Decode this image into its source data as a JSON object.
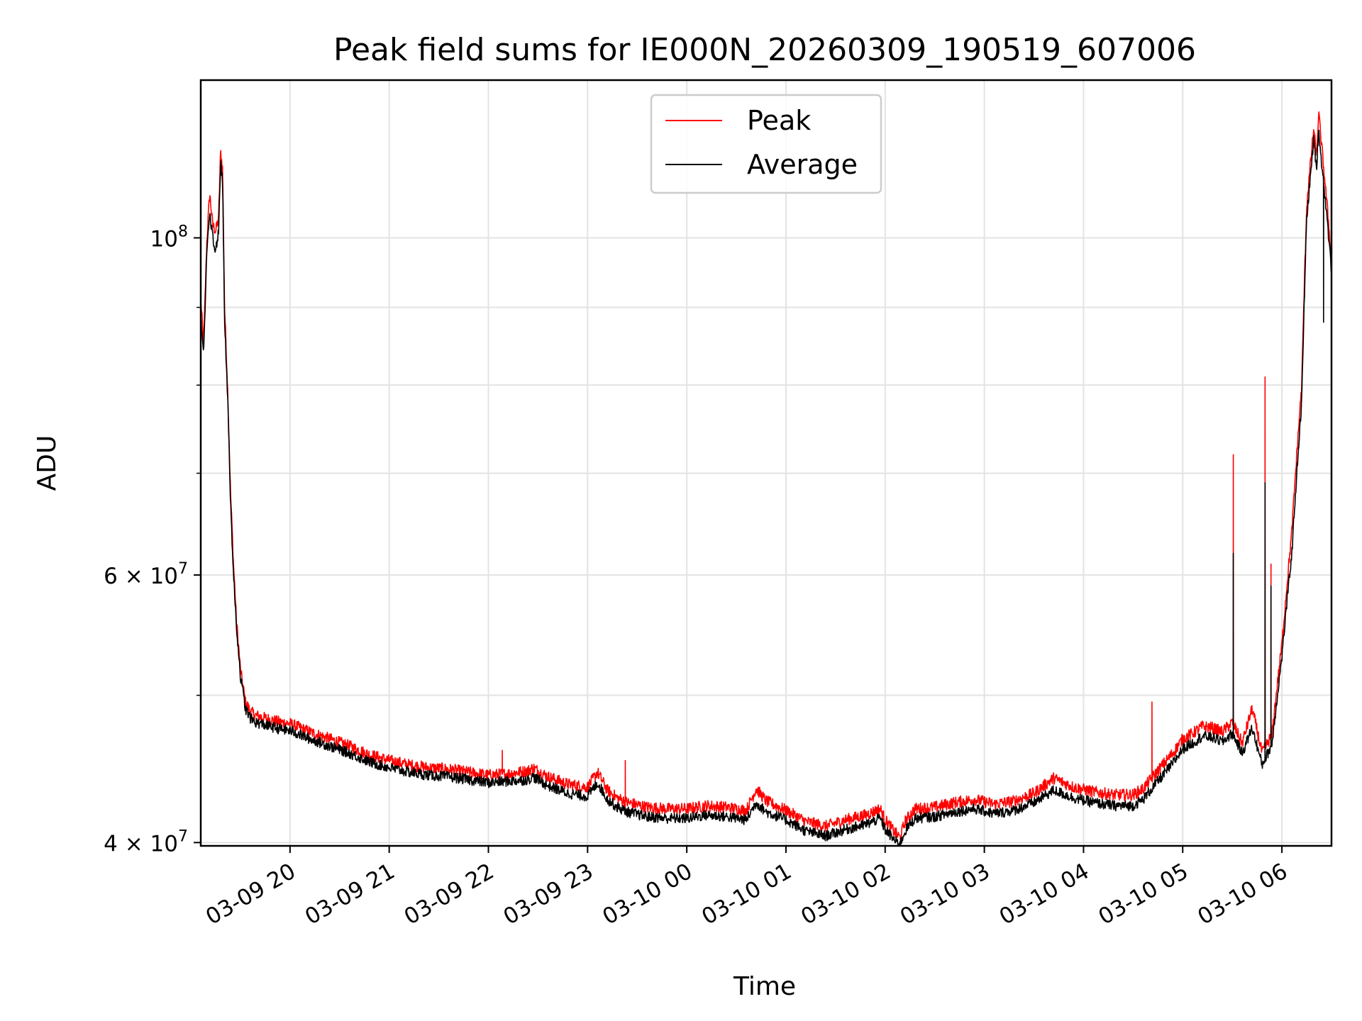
{
  "chart_data": {
    "type": "line",
    "title": "Peak field sums for IE000N_20260309_190519_607006",
    "xlabel": "Time",
    "ylabel": "ADU",
    "yscale": "log",
    "ylim": [
      39800000,
      127000000
    ],
    "xlim": [
      19.1,
      30.5
    ],
    "grid": true,
    "legend_position": "top-center",
    "x_ticks": [
      {
        "v": 20,
        "label": "03-09 20"
      },
      {
        "v": 21,
        "label": "03-09 21"
      },
      {
        "v": 22,
        "label": "03-09 22"
      },
      {
        "v": 23,
        "label": "03-09 23"
      },
      {
        "v": 24,
        "label": "03-10 00"
      },
      {
        "v": 25,
        "label": "03-10 01"
      },
      {
        "v": 26,
        "label": "03-10 02"
      },
      {
        "v": 27,
        "label": "03-10 03"
      },
      {
        "v": 28,
        "label": "03-10 04"
      },
      {
        "v": 29,
        "label": "03-10 05"
      },
      {
        "v": 30,
        "label": "03-10 06"
      }
    ],
    "y_major_ticks": [
      {
        "v": 100000000,
        "base": "10",
        "exp": "8",
        "coef": ""
      },
      {
        "v": 60000000,
        "base": "10",
        "exp": "7",
        "coef": "6 × "
      },
      {
        "v": 40000000,
        "base": "10",
        "exp": "7",
        "coef": "4 × "
      }
    ],
    "y_minor_ticks": [
      90000000,
      80000000,
      70000000,
      50000000
    ],
    "series": [
      {
        "name": "Peak",
        "color": "#ff0000",
        "x": [
          19.1,
          19.13,
          19.16,
          19.19,
          19.22,
          19.25,
          19.28,
          19.3,
          19.32,
          19.34,
          19.37,
          19.4,
          19.43,
          19.46,
          19.5,
          19.55,
          19.6,
          19.65,
          19.7,
          19.75,
          19.8,
          19.85,
          19.9,
          20.0,
          20.2,
          20.4,
          20.6,
          20.8,
          21.0,
          21.2,
          21.4,
          21.6,
          21.8,
          22.0,
          22.2,
          22.4,
          22.45,
          22.6,
          22.8,
          23.0,
          23.1,
          23.2,
          23.3,
          23.4,
          23.6,
          23.8,
          24.0,
          24.2,
          24.4,
          24.6,
          24.7,
          24.8,
          25.0,
          25.2,
          25.4,
          25.6,
          25.8,
          25.95,
          26.0,
          26.1,
          26.15,
          26.2,
          26.3,
          26.5,
          26.7,
          26.9,
          27.1,
          27.3,
          27.5,
          27.7,
          27.9,
          28.1,
          28.3,
          28.5,
          28.6,
          28.7,
          28.8,
          28.9,
          29.0,
          29.1,
          29.2,
          29.3,
          29.4,
          29.5,
          29.6,
          29.7,
          29.8,
          29.9,
          30.0,
          30.1,
          30.2,
          30.25,
          30.3,
          30.32,
          30.35,
          30.37,
          30.4,
          30.45,
          30.5
        ],
        "y": [
          91000000,
          85000000,
          99000000,
          107000000,
          102000000,
          101000000,
          103000000,
          114000000,
          111000000,
          90000000,
          80000000,
          68000000,
          61000000,
          56000000,
          52000000,
          49500000,
          48800000,
          48500000,
          48400000,
          48300000,
          48200000,
          48100000,
          48000000,
          47900000,
          47300000,
          46800000,
          46300000,
          45700000,
          45300000,
          45000000,
          44800000,
          44700000,
          44500000,
          44300000,
          44400000,
          44600000,
          44800000,
          44200000,
          43700000,
          43500000,
          44500000,
          43300000,
          42800000,
          42500000,
          42200000,
          42100000,
          42100000,
          42300000,
          42200000,
          42000000,
          43400000,
          42600000,
          42000000,
          41300000,
          41000000,
          41400000,
          41700000,
          42100000,
          41400000,
          40600000,
          40300000,
          41300000,
          42100000,
          42200000,
          42500000,
          42700000,
          42400000,
          42600000,
          43100000,
          44100000,
          43500000,
          43200000,
          43000000,
          43000000,
          43400000,
          44200000,
          45000000,
          45800000,
          46800000,
          47200000,
          47700000,
          47600000,
          47300000,
          48000000,
          46500000,
          49000000,
          45800000,
          47100000,
          54000000,
          64000000,
          80000000,
          105000000,
          114000000,
          118000000,
          113000000,
          121000000,
          115000000,
          106000000,
          97000000
        ]
      },
      {
        "name": "Average",
        "color": "#000000",
        "x": [
          19.1,
          19.13,
          19.16,
          19.19,
          19.22,
          19.25,
          19.28,
          19.3,
          19.32,
          19.34,
          19.37,
          19.4,
          19.43,
          19.46,
          19.5,
          19.55,
          19.6,
          19.65,
          19.7,
          19.75,
          19.8,
          19.85,
          19.9,
          20.0,
          20.2,
          20.4,
          20.6,
          20.8,
          21.0,
          21.2,
          21.4,
          21.6,
          21.8,
          22.0,
          22.2,
          22.4,
          22.45,
          22.6,
          22.8,
          23.0,
          23.1,
          23.2,
          23.3,
          23.4,
          23.6,
          23.8,
          24.0,
          24.2,
          24.4,
          24.6,
          24.7,
          24.8,
          25.0,
          25.2,
          25.4,
          25.6,
          25.8,
          25.95,
          26.0,
          26.1,
          26.15,
          26.2,
          26.3,
          26.5,
          26.7,
          26.9,
          27.1,
          27.3,
          27.5,
          27.7,
          27.9,
          28.1,
          28.3,
          28.5,
          28.6,
          28.7,
          28.8,
          28.9,
          29.0,
          29.1,
          29.2,
          29.3,
          29.4,
          29.5,
          29.6,
          29.7,
          29.8,
          29.9,
          30.0,
          30.1,
          30.2,
          30.25,
          30.3,
          30.32,
          30.35,
          30.37,
          30.4,
          30.45,
          30.5
        ],
        "y": [
          89000000,
          84000000,
          97000000,
          104000000,
          100000000,
          98000000,
          101000000,
          112000000,
          109000000,
          88000000,
          79000000,
          67000000,
          60000000,
          55500000,
          51500000,
          49000000,
          48300000,
          48000000,
          47900000,
          47800000,
          47700000,
          47600000,
          47500000,
          47400000,
          46800000,
          46300000,
          45800000,
          45200000,
          44800000,
          44500000,
          44300000,
          44200000,
          44000000,
          43800000,
          43900000,
          44000000,
          44200000,
          43600000,
          43100000,
          42900000,
          43800000,
          42700000,
          42200000,
          41900000,
          41600000,
          41500000,
          41500000,
          41700000,
          41600000,
          41400000,
          42500000,
          41900000,
          41400000,
          40700000,
          40400000,
          40800000,
          41100000,
          41500000,
          40800000,
          40100000,
          39900000,
          40700000,
          41500000,
          41600000,
          41900000,
          42100000,
          41800000,
          42000000,
          42500000,
          43300000,
          42800000,
          42500000,
          42300000,
          42300000,
          42700000,
          43500000,
          44300000,
          45100000,
          46100000,
          46500000,
          47000000,
          46900000,
          46600000,
          47200000,
          45800000,
          47600000,
          45000000,
          46400000,
          53000000,
          62000000,
          78000000,
          103000000,
          112000000,
          116000000,
          111000000,
          118000000,
          112000000,
          104000000,
          95000000
        ]
      }
    ],
    "spikes": [
      {
        "series": "Peak",
        "x": 28.69,
        "y": 49500000
      },
      {
        "series": "Peak",
        "x": 29.51,
        "y": 72000000
      },
      {
        "series": "Peak",
        "x": 29.83,
        "y": 81000000
      },
      {
        "series": "Peak",
        "x": 29.89,
        "y": 61000000
      },
      {
        "series": "Peak",
        "x": 23.38,
        "y": 45300000
      },
      {
        "series": "Peak",
        "x": 22.14,
        "y": 46000000
      },
      {
        "series": "Average",
        "x": 29.51,
        "y": 62000000
      },
      {
        "series": "Average",
        "x": 29.83,
        "y": 69000000
      },
      {
        "series": "Average",
        "x": 29.89,
        "y": 59000000
      },
      {
        "series": "Average",
        "x": 30.42,
        "y": 88000000
      }
    ]
  }
}
